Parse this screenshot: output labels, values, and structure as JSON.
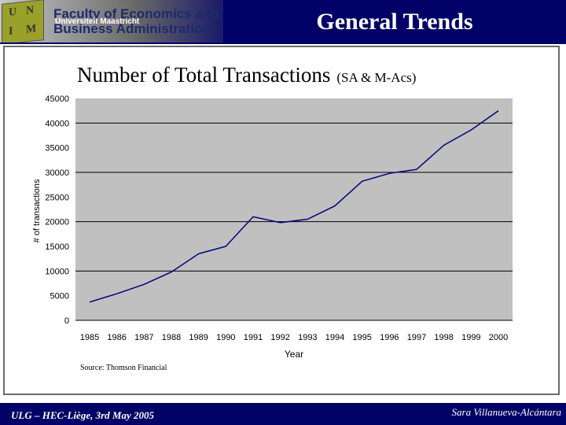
{
  "header": {
    "faculty_line1": "Faculty of Economics and",
    "faculty_line2": "Business Administration",
    "university": "Universiteit Maastricht",
    "title": "General Trends"
  },
  "footer": {
    "left": "ULG – HEC-Liège, 3rd May 2005",
    "right": "Sara Villanueva-Alcántara"
  },
  "colors": {
    "header_bg": "#000066",
    "plot_bg": "#c0c0c0",
    "line": "#000080"
  },
  "chart_data": {
    "type": "line",
    "title": "Number of Total Transactions",
    "subtitle": "(SA & M-Acs)",
    "xlabel": "Year",
    "ylabel": "# of transactions",
    "source": "Source: Thomson Financial",
    "categories": [
      "1985",
      "1986",
      "1987",
      "1988",
      "1989",
      "1990",
      "1991",
      "1992",
      "1993",
      "1994",
      "1995",
      "1996",
      "1997",
      "1998",
      "1999",
      "2000"
    ],
    "values": [
      3700,
      5400,
      7300,
      9800,
      13500,
      15000,
      21000,
      19800,
      20500,
      23200,
      28200,
      29800,
      30600,
      35500,
      38600,
      42500
    ],
    "ylim": [
      0,
      45000
    ],
    "yticks": [
      "0",
      "5000",
      "10000",
      "15000",
      "20000",
      "25000",
      "30000",
      "35000",
      "40000",
      "45000"
    ],
    "grid": true
  }
}
